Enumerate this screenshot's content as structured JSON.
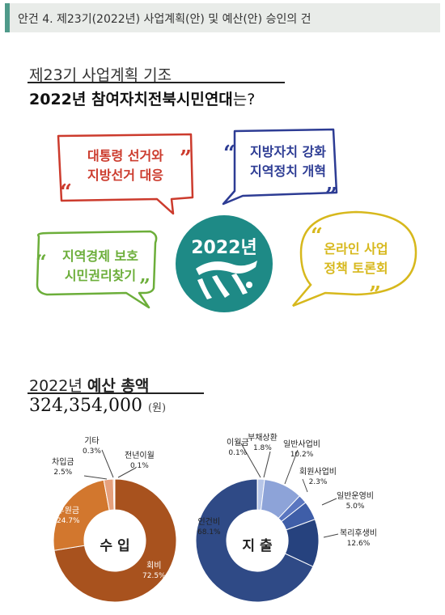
{
  "header": {
    "agenda_title": "안건 4. 제23기(2022년) 사업계획(안) 및 예산(안) 승인의 건"
  },
  "plan": {
    "subtitle": "제23기 사업계획 기조",
    "question_bold": "2022년 참여자치전북시민연대",
    "question_rest": "는?"
  },
  "bubbles": {
    "red": {
      "line1": "대통령 선거와",
      "line2": "지방선거 대응"
    },
    "blue": {
      "line1": "지방자치 강화",
      "line2": "지역정치 개혁"
    },
    "green": {
      "line1": "지역경제 보호",
      "line2": "시민권리찾기"
    },
    "yellow": {
      "line1": "온라인 사업",
      "line2": "정책 토론회"
    },
    "center_year": "2022년"
  },
  "colors": {
    "teal": "#1e8a86",
    "red": "#cc3b2d",
    "blue": "#2d3c94",
    "green": "#6cae3a",
    "yellow": "#d7b81c"
  },
  "budget": {
    "title_plain": "2022년 ",
    "title_bold": "예산 총액",
    "amount": "324,354,000",
    "unit": "(원)"
  },
  "chart_data": [
    {
      "type": "pie",
      "title": "수 입",
      "slices": [
        {
          "label": "회비",
          "value": 72.5,
          "pct": "72.5%",
          "color": "#a8521e"
        },
        {
          "label": "후원금",
          "value": 24.7,
          "pct": "24.7%",
          "color": "#d2772e"
        },
        {
          "label": "차입금",
          "value": 2.5,
          "pct": "2.5%",
          "color": "#e6a07c"
        },
        {
          "label": "기타",
          "value": 0.3,
          "pct": "0.3%",
          "color": "#f0c4a8"
        },
        {
          "label": "전년이월",
          "value": 0.1,
          "pct": "0.1%",
          "color": "#f6d8c6"
        }
      ]
    },
    {
      "type": "pie",
      "title": "지 출",
      "slices": [
        {
          "label": "인건비",
          "value": 68.1,
          "pct": "68.1%",
          "color": "#2f4a86"
        },
        {
          "label": "이월금",
          "value": 0.1,
          "pct": "0.1%",
          "color": "#c9d3ea"
        },
        {
          "label": "부채상환",
          "value": 1.8,
          "pct": "1.8%",
          "color": "#b7c6e8"
        },
        {
          "label": "일반사업비",
          "value": 10.2,
          "pct": "10.2%",
          "color": "#8da3d8"
        },
        {
          "label": "회원사업비",
          "value": 2.3,
          "pct": "2.3%",
          "color": "#5a76c0"
        },
        {
          "label": "일반운영비",
          "value": 5.0,
          "pct": "5.0%",
          "color": "#3f5ea8"
        },
        {
          "label": "복리후생비",
          "value": 12.6,
          "pct": "12.6%",
          "color": "#26427e"
        }
      ]
    }
  ]
}
